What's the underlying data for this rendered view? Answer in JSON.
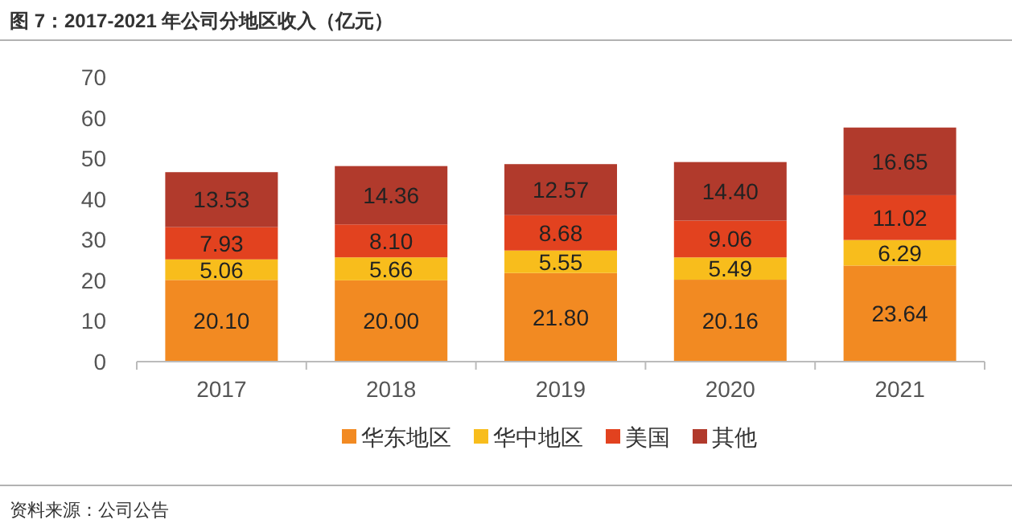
{
  "chart_data": {
    "type": "bar",
    "title": "图 7：2017-2021 年公司分地区收入（亿元）",
    "categories": [
      "2017",
      "2018",
      "2019",
      "2020",
      "2021"
    ],
    "stacked": true,
    "series": [
      {
        "name": "华东地区",
        "color": "#f28a22",
        "values": [
          20.1,
          20.0,
          21.8,
          20.16,
          23.64
        ],
        "value_labels": [
          "20.10",
          "20.00",
          "21.80",
          "20.16",
          "23.64"
        ]
      },
      {
        "name": "华中地区",
        "color": "#f8bd1c",
        "values": [
          5.06,
          5.66,
          5.55,
          5.49,
          6.29
        ],
        "value_labels": [
          "5.06",
          "5.66",
          "5.55",
          "5.49",
          "6.29"
        ]
      },
      {
        "name": "美国",
        "color": "#e2421f",
        "values": [
          7.93,
          8.1,
          8.68,
          9.06,
          11.02
        ],
        "value_labels": [
          "7.93",
          "8.10",
          "8.68",
          "9.06",
          "11.02"
        ]
      },
      {
        "name": "其他",
        "color": "#b13a2c",
        "values": [
          13.53,
          14.36,
          12.57,
          14.4,
          16.65
        ],
        "value_labels": [
          "13.53",
          "14.36",
          "12.57",
          "14.40",
          "16.65"
        ]
      }
    ],
    "ylim": [
      0,
      70
    ],
    "yticks": [
      0,
      10,
      20,
      30,
      40,
      50,
      60,
      70
    ],
    "legend": "bottom",
    "annotations": [
      "资料来源：公司公告"
    ]
  }
}
